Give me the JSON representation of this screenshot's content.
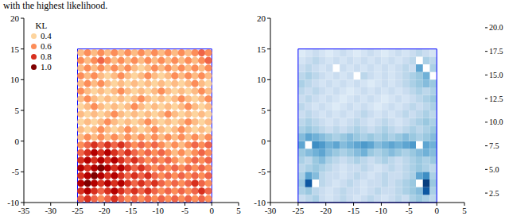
{
  "caption": "with the highest likelihood.",
  "chart_data": [
    {
      "type": "scatter",
      "xlim": [
        -35,
        5
      ],
      "xticks": [
        -35,
        -30,
        -25,
        -20,
        -15,
        -10,
        -5,
        0,
        5
      ],
      "ylim": [
        -10,
        20
      ],
      "yticks": [
        -10,
        -5,
        0,
        5,
        10,
        15,
        20
      ],
      "legend": "upper left",
      "legend_title": "KL",
      "legend_values": [
        0.4,
        0.6,
        0.8,
        {
          "value": 1.0,
          "label": "1.0"
        }
      ],
      "x": [
        -24.375,
        -23.125,
        -21.875,
        -20.625,
        -19.375,
        -18.125,
        -16.875,
        -15.625,
        -14.375,
        -13.125,
        -11.875,
        -10.625,
        -9.375,
        -8.125,
        -6.875,
        -5.625,
        -4.375,
        -3.125,
        -1.875,
        -0.625
      ],
      "y": [
        -9.375,
        -8.125,
        -6.875,
        -5.625,
        -4.375,
        -3.125,
        -1.875,
        -0.625,
        0.625,
        1.875,
        3.125,
        4.375,
        5.625,
        6.875,
        8.125,
        9.375,
        10.625,
        11.875,
        13.125,
        14.375
      ],
      "values": [
        [
          0.7,
          0.8,
          0.7,
          0.6,
          0.7,
          0.8,
          0.7,
          0.6,
          0.7,
          0.6,
          0.7,
          0.6,
          0.7,
          0.6,
          0.7,
          0.6,
          0.7,
          0.6,
          0.7,
          0.6
        ],
        [
          0.8,
          0.9,
          0.8,
          0.7,
          0.8,
          0.9,
          0.8,
          0.7,
          0.8,
          0.7,
          0.8,
          0.7,
          0.6,
          0.7,
          0.6,
          0.7,
          0.6,
          0.7,
          0.8,
          0.7
        ],
        [
          0.9,
          1.0,
          0.9,
          0.8,
          0.9,
          0.8,
          0.9,
          0.8,
          0.7,
          0.8,
          0.7,
          0.8,
          0.7,
          0.6,
          0.7,
          0.6,
          0.7,
          0.8,
          0.7,
          0.6
        ],
        [
          0.8,
          0.9,
          1.0,
          0.9,
          0.8,
          0.9,
          0.8,
          0.7,
          0.8,
          0.7,
          0.8,
          0.7,
          0.6,
          0.7,
          0.6,
          0.7,
          0.6,
          0.7,
          0.6,
          0.7
        ],
        [
          0.9,
          0.8,
          0.9,
          1.0,
          0.9,
          0.8,
          0.9,
          0.8,
          0.7,
          0.8,
          0.7,
          0.6,
          0.7,
          0.6,
          0.7,
          0.6,
          0.7,
          0.6,
          0.7,
          0.6
        ],
        [
          0.8,
          0.9,
          0.8,
          0.9,
          0.8,
          0.9,
          0.8,
          0.7,
          0.8,
          0.7,
          0.6,
          0.7,
          0.6,
          0.7,
          0.6,
          0.5,
          0.6,
          0.7,
          0.6,
          0.7
        ],
        [
          0.7,
          0.8,
          0.9,
          0.8,
          0.9,
          0.8,
          0.7,
          0.8,
          0.7,
          0.6,
          0.7,
          0.6,
          0.7,
          0.6,
          0.5,
          0.6,
          0.5,
          0.6,
          0.7,
          0.6
        ],
        [
          0.6,
          0.7,
          0.8,
          0.7,
          0.8,
          0.7,
          0.8,
          0.7,
          0.6,
          0.7,
          0.6,
          0.7,
          0.6,
          0.5,
          0.6,
          0.5,
          0.6,
          0.7,
          0.6,
          0.7
        ],
        [
          0.5,
          0.6,
          0.5,
          0.6,
          0.5,
          0.6,
          0.5,
          0.6,
          0.5,
          0.6,
          0.5,
          0.6,
          0.5,
          0.6,
          0.5,
          0.6,
          0.5,
          0.6,
          0.5,
          0.6
        ],
        [
          0.5,
          0.4,
          0.5,
          0.6,
          0.5,
          0.4,
          0.5,
          0.6,
          0.5,
          0.4,
          0.5,
          0.6,
          0.5,
          0.4,
          0.5,
          0.6,
          0.5,
          0.4,
          0.5,
          0.4
        ],
        [
          0.4,
          0.5,
          0.4,
          0.5,
          0.6,
          0.5,
          0.4,
          0.5,
          0.4,
          0.5,
          0.6,
          0.5,
          0.4,
          0.5,
          0.4,
          0.5,
          0.6,
          0.5,
          0.4,
          0.5
        ],
        [
          0.5,
          0.4,
          0.5,
          0.4,
          0.5,
          0.6,
          0.5,
          0.4,
          0.5,
          0.4,
          0.5,
          0.4,
          0.5,
          0.6,
          0.5,
          0.4,
          0.5,
          0.4,
          0.5,
          0.4
        ],
        [
          0.4,
          0.5,
          0.6,
          0.5,
          0.4,
          0.5,
          0.4,
          0.5,
          0.6,
          0.5,
          0.4,
          0.5,
          0.4,
          0.5,
          0.4,
          0.5,
          0.6,
          0.5,
          0.4,
          0.5
        ],
        [
          0.5,
          0.6,
          0.5,
          0.4,
          0.5,
          0.4,
          0.5,
          0.4,
          0.5,
          0.6,
          0.5,
          0.4,
          0.5,
          0.4,
          0.5,
          0.6,
          0.5,
          0.4,
          0.5,
          0.6
        ],
        [
          0.6,
          0.5,
          0.4,
          0.5,
          0.4,
          0.5,
          0.6,
          0.5,
          0.4,
          0.5,
          0.4,
          0.5,
          0.6,
          0.5,
          0.4,
          0.5,
          0.4,
          0.5,
          0.6,
          0.5
        ],
        [
          0.5,
          0.6,
          0.5,
          0.6,
          0.5,
          0.4,
          0.5,
          0.4,
          0.5,
          0.4,
          0.5,
          0.4,
          0.5,
          0.4,
          0.5,
          0.4,
          0.5,
          0.6,
          0.5,
          0.4
        ],
        [
          0.6,
          0.5,
          0.6,
          0.5,
          0.4,
          0.5,
          0.6,
          0.5,
          0.4,
          0.5,
          0.6,
          0.5,
          0.4,
          0.5,
          0.6,
          0.5,
          0.6,
          0.5,
          0.6,
          0.5
        ],
        [
          0.5,
          0.6,
          0.5,
          0.6,
          0.5,
          0.6,
          0.5,
          0.6,
          0.5,
          0.4,
          0.5,
          0.6,
          0.5,
          0.6,
          0.5,
          0.6,
          0.5,
          0.6,
          0.5,
          0.6
        ],
        [
          0.6,
          0.5,
          0.6,
          0.7,
          0.6,
          0.5,
          0.6,
          0.5,
          0.6,
          0.5,
          0.6,
          0.5,
          0.6,
          0.5,
          0.6,
          0.5,
          0.6,
          0.5,
          0.6,
          0.7
        ],
        [
          0.5,
          0.6,
          0.5,
          0.6,
          0.5,
          0.6,
          0.5,
          0.6,
          0.5,
          0.6,
          0.5,
          0.6,
          0.5,
          0.6,
          0.5,
          0.6,
          0.5,
          0.6,
          0.7,
          0.6
        ]
      ],
      "region_x": [
        -25,
        0
      ],
      "region_y": [
        -10,
        15
      ]
    },
    {
      "type": "heatmap",
      "xlim": [
        -30,
        5
      ],
      "xticks": [
        -30,
        -25,
        -20,
        -15,
        -10,
        -5,
        0,
        5
      ],
      "ylim": [
        -10,
        20
      ],
      "yticks": [
        -10,
        -5,
        0,
        5,
        10,
        15,
        20
      ],
      "x_edges": [
        -25,
        -23.75,
        -22.5,
        -21.25,
        -20,
        -18.75,
        -17.5,
        -16.25,
        -15,
        -13.75,
        -12.5,
        -11.25,
        -10,
        -8.75,
        -7.5,
        -6.25,
        -5,
        -3.75,
        -2.5,
        -1.25,
        0
      ],
      "y_edges": [
        -10,
        -8.75,
        -7.5,
        -6.25,
        -5,
        -3.75,
        -2.5,
        -1.25,
        0,
        1.25,
        2.5,
        3.75,
        5,
        6.25,
        7.5,
        8.75,
        10,
        11.25,
        12.5,
        13.75,
        15
      ],
      "cells": [
        [
          6,
          7,
          8,
          6,
          5,
          6,
          7,
          6,
          5,
          6,
          7,
          6,
          5,
          6,
          7,
          6,
          8,
          9,
          8,
          7
        ],
        [
          8,
          9,
          7,
          6,
          5,
          6,
          7,
          6,
          6,
          5,
          6,
          7,
          6,
          6,
          7,
          8,
          9,
          10,
          18,
          8
        ],
        [
          9,
          18,
          null,
          7,
          6,
          5,
          6,
          7,
          6,
          5,
          6,
          6,
          7,
          6,
          7,
          8,
          9,
          null,
          20,
          9
        ],
        [
          8,
          12,
          10,
          7,
          6,
          6,
          5,
          6,
          7,
          6,
          5,
          6,
          7,
          6,
          6,
          7,
          8,
          12,
          14,
          8
        ],
        [
          7,
          8,
          9,
          8,
          7,
          6,
          5,
          6,
          6,
          7,
          6,
          5,
          6,
          7,
          6,
          7,
          8,
          9,
          8,
          7
        ],
        [
          8,
          7,
          9,
          10,
          8,
          7,
          6,
          7,
          8,
          7,
          6,
          7,
          8,
          7,
          6,
          7,
          8,
          9,
          8,
          9
        ],
        [
          9,
          10,
          11,
          12,
          10,
          9,
          8,
          9,
          10,
          11,
          9,
          8,
          9,
          10,
          9,
          8,
          9,
          10,
          11,
          10
        ],
        [
          12,
          null,
          14,
          13,
          11,
          12,
          10,
          11,
          12,
          13,
          12,
          10,
          11,
          12,
          11,
          12,
          13,
          null,
          12,
          11
        ],
        [
          10,
          12,
          11,
          10,
          9,
          8,
          9,
          10,
          9,
          8,
          9,
          8,
          9,
          8,
          9,
          10,
          9,
          8,
          9,
          10
        ],
        [
          8,
          9,
          8,
          7,
          6,
          7,
          6,
          7,
          8,
          7,
          6,
          7,
          8,
          7,
          6,
          7,
          8,
          7,
          8,
          9
        ],
        [
          7,
          8,
          7,
          6,
          5,
          6,
          5,
          6,
          7,
          6,
          5,
          6,
          7,
          6,
          5,
          6,
          7,
          8,
          9,
          8
        ],
        [
          6,
          7,
          6,
          5,
          6,
          5,
          6,
          5,
          6,
          7,
          6,
          5,
          6,
          5,
          6,
          7,
          6,
          7,
          8,
          7
        ],
        [
          7,
          6,
          5,
          6,
          5,
          4,
          5,
          6,
          5,
          6,
          5,
          4,
          5,
          6,
          5,
          6,
          7,
          6,
          7,
          8
        ],
        [
          6,
          7,
          6,
          5,
          6,
          5,
          4,
          5,
          6,
          5,
          6,
          5,
          4,
          5,
          6,
          5,
          6,
          7,
          8,
          9
        ],
        [
          7,
          6,
          7,
          6,
          5,
          6,
          5,
          4,
          5,
          6,
          5,
          6,
          5,
          6,
          5,
          6,
          7,
          8,
          7,
          8
        ],
        [
          8,
          7,
          6,
          5,
          6,
          5,
          6,
          5,
          6,
          5,
          4,
          5,
          6,
          5,
          6,
          7,
          8,
          9,
          10,
          9
        ],
        [
          7,
          8,
          7,
          6,
          5,
          6,
          5,
          6,
          null,
          7,
          6,
          5,
          6,
          5,
          6,
          7,
          8,
          9,
          11,
          null
        ],
        [
          6,
          7,
          6,
          5,
          6,
          null,
          6,
          5,
          6,
          5,
          6,
          5,
          6,
          5,
          6,
          7,
          6,
          12,
          null,
          8
        ],
        [
          5,
          6,
          7,
          6,
          5,
          6,
          5,
          6,
          5,
          6,
          5,
          6,
          5,
          6,
          5,
          6,
          7,
          null,
          8,
          7
        ],
        [
          4,
          5,
          6,
          5,
          4,
          5,
          6,
          5,
          4,
          5,
          6,
          5,
          4,
          5,
          6,
          5,
          6,
          7,
          6,
          5
        ]
      ],
      "colorbar_range": [
        1.5,
        21
      ],
      "colorbar_ticks": [
        2.5,
        {
          "value": 5,
          "label": "5.0"
        },
        7.5,
        {
          "value": 10,
          "label": "10.0"
        },
        12.5,
        {
          "value": 15,
          "label": "15.0"
        },
        17.5,
        {
          "value": 20,
          "label": "20.0"
        }
      ],
      "region_x": [
        -25,
        0
      ],
      "region_y": [
        -10,
        15
      ]
    }
  ]
}
